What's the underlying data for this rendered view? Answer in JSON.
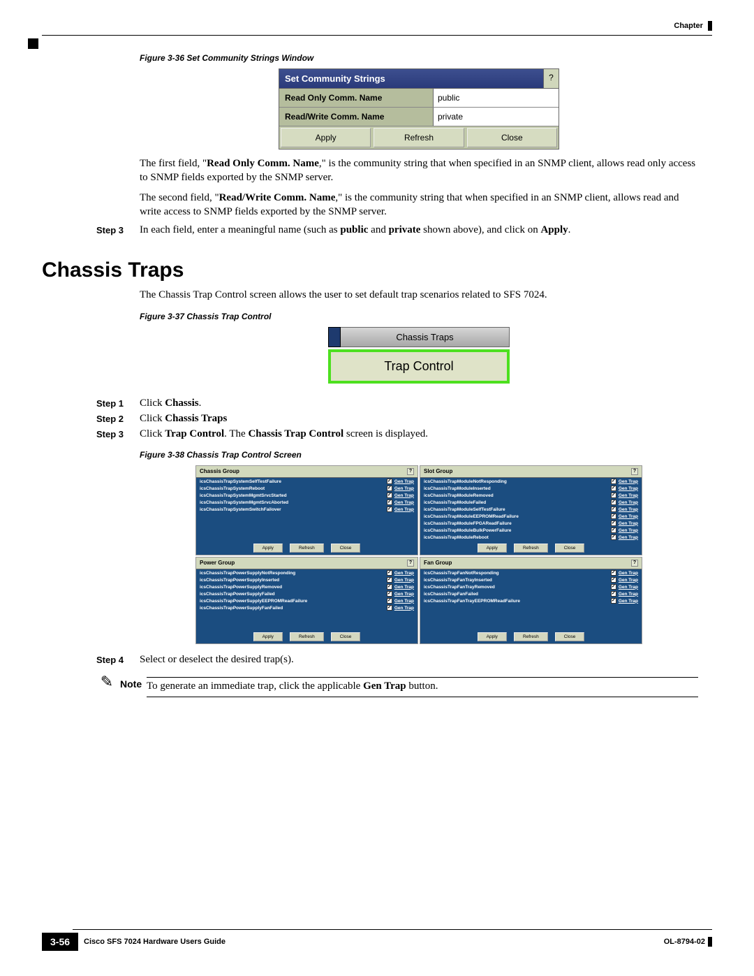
{
  "header": {
    "label": "Chapter"
  },
  "figure36": {
    "caption": "Figure 3-36   Set Community Strings Window",
    "title": "Set Community Strings",
    "help": "?",
    "row1_label": "Read Only Comm. Name",
    "row1_value": "public",
    "row2_label": "Read/Write Comm. Name",
    "row2_value": "private",
    "btn_apply": "Apply",
    "btn_refresh": "Refresh",
    "btn_close": "Close"
  },
  "para1_a": "The first field, \"",
  "para1_bold": "Read Only Comm. Name",
  "para1_b": ",\" is the community string that when specified in an SNMP client, allows read only access to SNMP fields exported by the SNMP server.",
  "para2_a": "The second field, \"",
  "para2_bold": "Read/Write Comm. Name",
  "para2_b": ",\" is the community string that when specified in an SNMP client, allows read and write access to SNMP fields exported by the SNMP server.",
  "step3top_label": "Step 3",
  "step3top_a": "In each field, enter a meaningful name (such as ",
  "step3top_b1": "public",
  "step3top_mid": " and ",
  "step3top_b2": "private",
  "step3top_c": " shown above), and click on ",
  "step3top_b3": "Apply",
  "step3top_d": ".",
  "section_heading": "Chassis Traps",
  "intro": "The Chassis Trap Control screen allows the user to set default trap scenarios related to SFS 7024.",
  "figure37": {
    "caption": "Figure 3-37   Chassis Trap Control",
    "tab": "Chassis Traps",
    "sub": "Trap Control"
  },
  "step1": {
    "label": "Step 1",
    "a": "Click ",
    "b": "Chassis",
    "c": "."
  },
  "step2": {
    "label": "Step 2",
    "a": "Click ",
    "b": "Chassis Traps"
  },
  "step3": {
    "label": "Step 3",
    "a": "Click ",
    "b1": "Trap Control",
    "mid": ". The ",
    "b2": "Chassis Trap Control",
    "c": " screen is displayed."
  },
  "figure38": {
    "caption": "Figure 3-38   Chassis Trap Control Screen",
    "gen_trap": "Gen Trap",
    "btn_apply": "Apply",
    "btn_refresh": "Refresh",
    "btn_close": "Close",
    "groups": {
      "chassis": {
        "title": "Chassis Group",
        "items": [
          "icsChassisTrapSystemSelfTestFailure",
          "icsChassisTrapSystemReboot",
          "icsChassisTrapSystemMgmtSrvcStarted",
          "icsChassisTrapSystemMgmtSrvcAborted",
          "icsChassisTrapSystemSwitchFailover"
        ]
      },
      "slot": {
        "title": "Slot Group",
        "items": [
          "icsChassisTrapModuleNotResponding",
          "icsChassisTrapModuleInserted",
          "icsChassisTrapModuleRemoved",
          "icsChassisTrapModuleFailed",
          "icsChassisTrapModuleSelfTestFailure",
          "icsChassisTrapModuleEEPROMReadFailure",
          "icsChassisTrapModuleFPGAReadFailure",
          "icsChassisTrapModuleBulkPowerFailure",
          "icsChassisTrapModuleReboot"
        ]
      },
      "power": {
        "title": "Power Group",
        "items": [
          "icsChassisTrapPowerSupplyNotResponding",
          "icsChassisTrapPowerSupplyInserted",
          "icsChassisTrapPowerSupplyRemoved",
          "icsChassisTrapPowerSupplyFailed",
          "icsChassisTrapPowerSupplyEEPROMReadFailure",
          "icsChassisTrapPowerSupplyFanFailed"
        ]
      },
      "fan": {
        "title": "Fan Group",
        "items": [
          "icsChassisTrapFanNotResponding",
          "icsChassisTrapFanTrayInserted",
          "icsChassisTrapFanTrayRemoved",
          "icsChassisTrapFanFailed",
          "icsChassisTrapFanTrayEEPROMReadFailure"
        ]
      }
    }
  },
  "step4": {
    "label": "Step 4",
    "text": "Select or deselect the desired trap(s)."
  },
  "note": {
    "label": "Note",
    "a": "To generate an immediate trap, click the applicable ",
    "b": "Gen Trap",
    "c": " button."
  },
  "footer": {
    "title": "Cisco SFS 7024 Hardware Users Guide",
    "page": "3-56",
    "doc": "OL-8794-02"
  }
}
